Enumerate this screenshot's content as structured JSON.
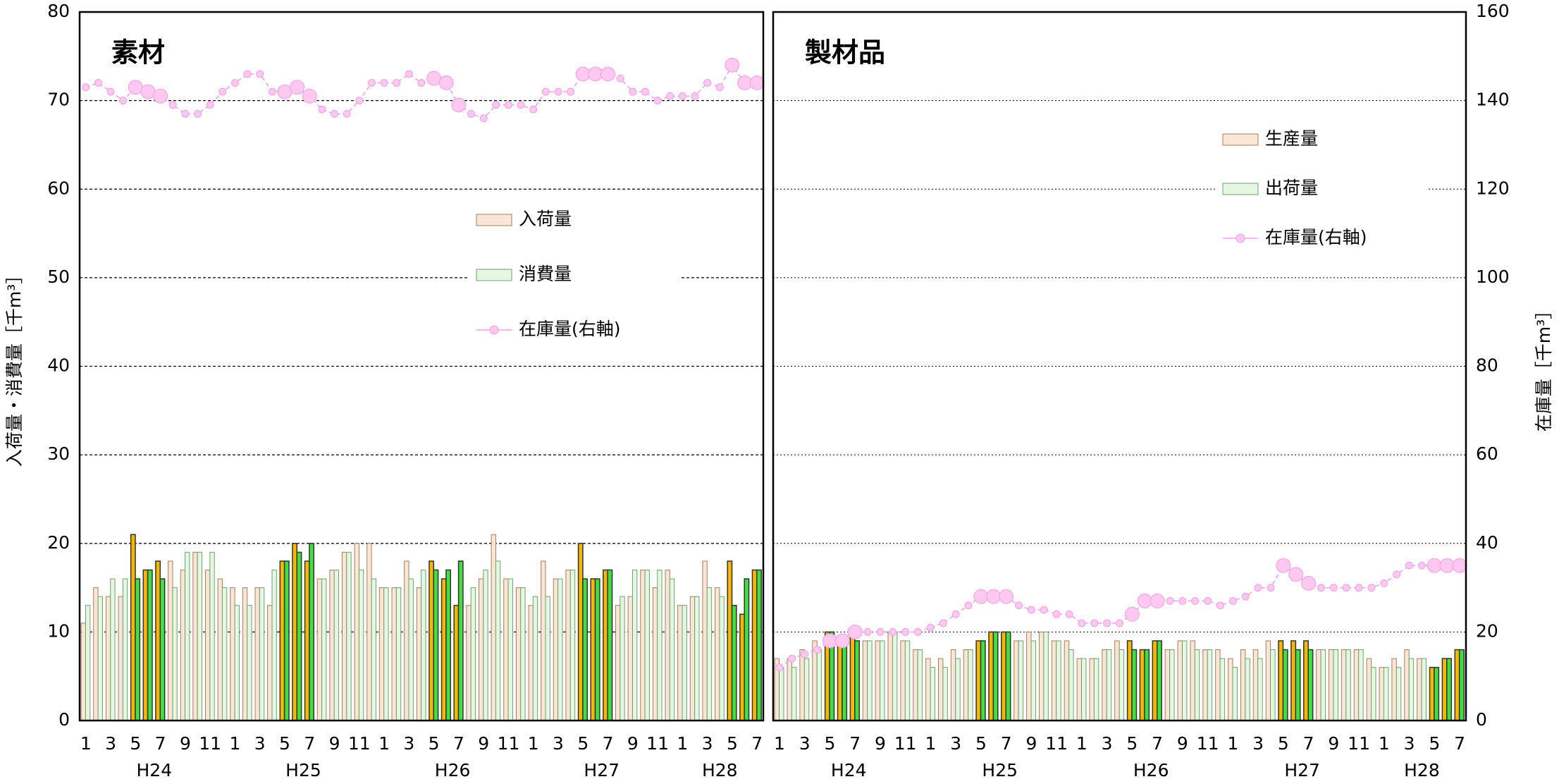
{
  "chart_data": [
    {
      "type": "bar",
      "title": "素材",
      "ylabel": "入荷量・消費量［千m³］",
      "categories": [
        1,
        null,
        3,
        null,
        5,
        null,
        7,
        null,
        9,
        null,
        11,
        null,
        1,
        null,
        3,
        null,
        5,
        null,
        7,
        null,
        9,
        null,
        11,
        null,
        1,
        null,
        3,
        null,
        5,
        null,
        7,
        null,
        9,
        null,
        11,
        null,
        1,
        null,
        3,
        null,
        5,
        null,
        7,
        null,
        9,
        null,
        11,
        null,
        1,
        null,
        3,
        null,
        5,
        null,
        7
      ],
      "x_groups": [
        "H24",
        "H25",
        "H26",
        "H27",
        "H28"
      ],
      "highlight": [
        4,
        5,
        6,
        16,
        17,
        18,
        28,
        29,
        30,
        40,
        41,
        42,
        52,
        53,
        54
      ],
      "ylim": [
        0,
        80
      ],
      "yticks": [
        0,
        10,
        20,
        30,
        40,
        50,
        60,
        70,
        80
      ],
      "y2lim": [
        0,
        160
      ],
      "grid": true,
      "series": [
        {
          "name": "入荷量",
          "color": "#fbe5d4",
          "edge_color": "#a08060",
          "highlight_color": "#f5b800",
          "values": [
            11,
            15,
            14,
            14,
            21,
            17,
            18,
            18,
            17,
            19,
            17,
            16,
            15,
            15,
            15,
            13,
            18,
            20,
            18,
            16,
            17,
            19,
            20,
            20,
            15,
            15,
            18,
            15,
            18,
            16,
            13,
            13,
            16,
            21,
            16,
            15,
            13,
            18,
            16,
            17,
            20,
            16,
            17,
            13,
            14,
            17,
            15,
            17,
            13,
            14,
            18,
            15,
            18,
            12,
            17
          ]
        },
        {
          "name": "消費量",
          "color": "#e6f7e1",
          "edge_color": "#70a070",
          "highlight_color": "#40e040",
          "values": [
            13,
            14,
            16,
            16,
            16,
            17,
            16,
            15,
            19,
            19,
            19,
            15,
            13,
            13,
            15,
            17,
            18,
            19,
            20,
            16,
            17,
            19,
            17,
            16,
            15,
            15,
            16,
            17,
            17,
            17,
            18,
            15,
            17,
            18,
            16,
            15,
            14,
            14,
            16,
            17,
            16,
            16,
            17,
            14,
            17,
            17,
            17,
            16,
            13,
            14,
            15,
            14,
            13,
            16,
            17
          ]
        },
        {
          "name": "在庫量(右軸)",
          "type": "line",
          "axis": "y2",
          "color": "#ffc8f0",
          "edge_color": "#f0a0e0",
          "highlight_color": "#ffc8f0",
          "values": [
            143,
            144,
            142,
            140,
            143,
            142,
            141,
            139,
            137,
            137,
            139,
            142,
            144,
            146,
            146,
            142,
            142,
            143,
            141,
            138,
            137,
            137,
            140,
            144,
            144,
            144,
            146,
            144,
            145,
            144,
            139,
            137,
            136,
            139,
            139,
            139,
            138,
            142,
            142,
            142,
            146,
            146,
            146,
            145,
            142,
            142,
            140,
            141,
            141,
            141,
            144,
            143,
            148,
            144,
            144
          ]
        }
      ]
    },
    {
      "type": "bar",
      "title": "製材品",
      "y2label": "在庫量［千m³］",
      "categories": [
        1,
        null,
        3,
        null,
        5,
        null,
        7,
        null,
        9,
        null,
        11,
        null,
        1,
        null,
        3,
        null,
        5,
        null,
        7,
        null,
        9,
        null,
        11,
        null,
        1,
        null,
        3,
        null,
        5,
        null,
        7,
        null,
        9,
        null,
        11,
        null,
        1,
        null,
        3,
        null,
        5,
        null,
        7,
        null,
        9,
        null,
        11,
        null,
        1,
        null,
        3,
        null,
        5,
        null,
        7
      ],
      "x_groups": [
        "H24",
        "H25",
        "H26",
        "H27",
        "H28"
      ],
      "highlight": [
        4,
        5,
        6,
        16,
        17,
        18,
        28,
        29,
        30,
        40,
        41,
        42,
        52,
        53,
        54
      ],
      "ylim": [
        0,
        80
      ],
      "y2lim": [
        0,
        160
      ],
      "y2ticks": [
        0,
        20,
        40,
        60,
        80,
        100,
        120,
        140,
        160
      ],
      "grid": true,
      "series": [
        {
          "name": "生産量",
          "color": "#fbe5d4",
          "edge_color": "#a08060",
          "highlight_color": "#f5b800",
          "values": [
            7,
            7,
            8,
            9,
            10,
            9,
            10,
            9,
            9,
            10,
            9,
            8,
            7,
            7,
            8,
            8,
            9,
            10,
            10,
            9,
            10,
            10,
            9,
            9,
            7,
            7,
            8,
            9,
            9,
            8,
            9,
            8,
            9,
            9,
            8,
            8,
            7,
            8,
            8,
            9,
            9,
            9,
            9,
            8,
            8,
            8,
            8,
            7,
            6,
            7,
            8,
            7,
            6,
            7,
            8
          ]
        },
        {
          "name": "出荷量",
          "color": "#e6f7e1",
          "edge_color": "#70a070",
          "highlight_color": "#40e040",
          "values": [
            6,
            6,
            7,
            8,
            10,
            9,
            9,
            9,
            9,
            10,
            9,
            8,
            6,
            6,
            7,
            8,
            9,
            10,
            10,
            9,
            9,
            10,
            9,
            8,
            7,
            7,
            8,
            8,
            8,
            8,
            9,
            8,
            9,
            8,
            8,
            7,
            6,
            7,
            7,
            8,
            8,
            8,
            8,
            8,
            8,
            8,
            8,
            6,
            6,
            6,
            7,
            7,
            6,
            7,
            8
          ]
        },
        {
          "name": "在庫量(右軸)",
          "type": "line",
          "axis": "y2",
          "color": "#ffc8f0",
          "edge_color": "#f0a0e0",
          "highlight_color": "#ffc8f0",
          "values": [
            12,
            14,
            15,
            16,
            18,
            18,
            20,
            20,
            20,
            20,
            20,
            20,
            21,
            22,
            24,
            26,
            28,
            28,
            28,
            26,
            25,
            25,
            24,
            24,
            22,
            22,
            22,
            22,
            24,
            27,
            27,
            27,
            27,
            27,
            27,
            26,
            27,
            28,
            30,
            30,
            35,
            33,
            31,
            30,
            30,
            30,
            30,
            30,
            31,
            33,
            35,
            35,
            35,
            35,
            35
          ]
        }
      ]
    }
  ]
}
